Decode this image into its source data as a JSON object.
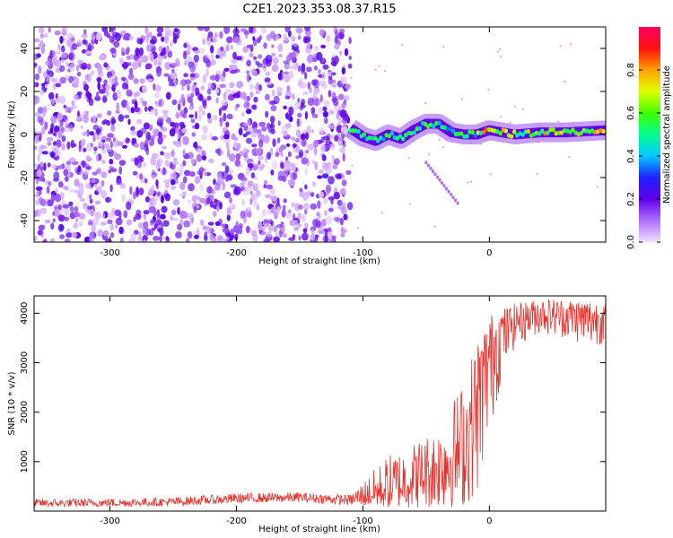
{
  "title": "C2E1.2023.353.08.37.R15",
  "colors": {
    "snr_line": "#e8302a",
    "spectrogram_dense": "#6a00e8",
    "spectrogram_light": "#d9b8ff"
  },
  "chart_data": [
    {
      "type": "heatmap",
      "name": "spectrogram",
      "xlabel": "Height of straight line (km)",
      "ylabel": "Frequency (Hz)",
      "xlim": [
        -360,
        92
      ],
      "ylim": [
        -50,
        50
      ],
      "xticks": [
        -300,
        -200,
        -100,
        0
      ],
      "yticks": [
        -40,
        -20,
        0,
        20,
        40
      ],
      "colorbar": {
        "label": "Normalized spectral amplitude",
        "range": [
          0,
          1
        ],
        "ticks": [
          0.0,
          0.2,
          0.4,
          0.6,
          0.8
        ],
        "colormap": [
          "#f0e0ff",
          "#b070ff",
          "#6000e8",
          "#2020ff",
          "#00c8ff",
          "#00ff90",
          "#40ff00",
          "#e0ff00",
          "#ffa000",
          "#ff1010",
          "#ff0060"
        ]
      },
      "noise_region": {
        "x_range": [
          -360,
          -110
        ],
        "f_range": [
          -50,
          50
        ],
        "amplitude": 0.1
      },
      "signal_track": [
        {
          "x": -110,
          "f": 3
        },
        {
          "x": -100,
          "f": -1
        },
        {
          "x": -90,
          "f": -3
        },
        {
          "x": -80,
          "f": 0
        },
        {
          "x": -70,
          "f": -2
        },
        {
          "x": -60,
          "f": 2
        },
        {
          "x": -50,
          "f": 5
        },
        {
          "x": -40,
          "f": 5
        },
        {
          "x": -30,
          "f": 1
        },
        {
          "x": -20,
          "f": 0
        },
        {
          "x": -10,
          "f": 0
        },
        {
          "x": 0,
          "f": 2
        },
        {
          "x": 20,
          "f": 0
        },
        {
          "x": 40,
          "f": 1
        },
        {
          "x": 60,
          "f": 1
        },
        {
          "x": 92,
          "f": 2
        }
      ],
      "secondary_streak": [
        {
          "x": -50,
          "f": -13
        },
        {
          "x": -25,
          "f": -32
        }
      ]
    },
    {
      "type": "line",
      "name": "snr",
      "xlabel": "Height of straight line (km)",
      "ylabel": "SNR (10 * v/v)",
      "xlim": [
        -360,
        92
      ],
      "ylim": [
        0,
        4350
      ],
      "xticks": [
        -300,
        -200,
        -100,
        0
      ],
      "yticks": [
        1000,
        2000,
        3000,
        4000
      ],
      "series": [
        {
          "x": [
            -360,
            -300,
            -250,
            -200,
            -150,
            -110,
            -100,
            -80,
            -60,
            -40,
            -20,
            -10,
            0,
            10,
            20,
            40,
            60,
            80,
            92
          ],
          "values": [
            150,
            160,
            180,
            250,
            270,
            220,
            280,
            400,
            650,
            900,
            1200,
            2200,
            3200,
            3700,
            3900,
            4050,
            3980,
            3900,
            3950
          ],
          "low": [
            80,
            90,
            100,
            160,
            180,
            120,
            100,
            60,
            50,
            50,
            80,
            300,
            1500,
            2700,
            3300,
            3600,
            3500,
            3300,
            3400
          ],
          "high": [
            250,
            260,
            280,
            360,
            380,
            330,
            600,
            1150,
            1400,
            1700,
            2700,
            3500,
            4000,
            4100,
            4200,
            4300,
            4300,
            4300,
            4200
          ]
        }
      ]
    }
  ]
}
